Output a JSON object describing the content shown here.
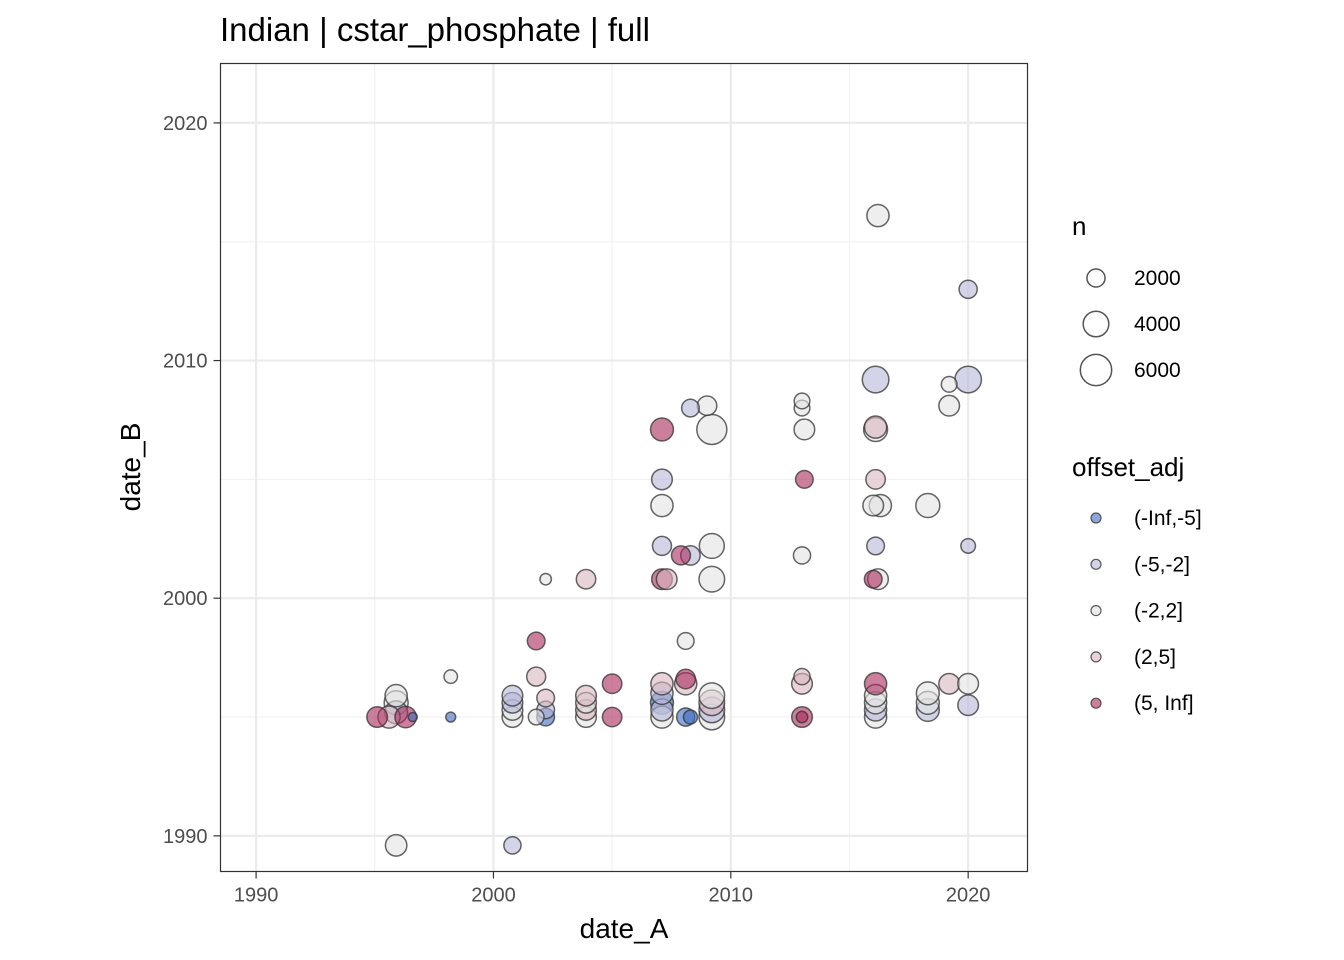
{
  "chart_data": {
    "type": "scatter",
    "title": "Indian | cstar_phosphate | full",
    "xlabel": "date_A",
    "ylabel": "date_B",
    "xlim": [
      1988.5,
      2022.5
    ],
    "ylim": [
      1988.5,
      2022.5
    ],
    "xticks": [
      1990,
      2000,
      2010,
      2020
    ],
    "yticks": [
      1990,
      2000,
      2010,
      2020
    ],
    "grid": true,
    "legend_position": "right",
    "size_legend": {
      "title": "n",
      "items": [
        {
          "label": "2000",
          "value": 2000
        },
        {
          "label": "4000",
          "value": 4000
        },
        {
          "label": "6000",
          "value": 6000
        }
      ]
    },
    "color_legend": {
      "title": "offset_adj",
      "items": [
        {
          "label": "(-Inf,-5]",
          "color": "#3d6bbf"
        },
        {
          "label": "(-5,-2]",
          "color": "#b7b8d8"
        },
        {
          "label": "(-2,2]",
          "color": "#e3e3e3"
        },
        {
          "label": "(2,5]",
          "color": "#d9b6bf"
        },
        {
          "label": "(5, Inf]",
          "color": "#a8295a"
        }
      ]
    },
    "points": [
      {
        "x": 1995.1,
        "y": 1995.0,
        "n": 2600,
        "cls": "(5, Inf]"
      },
      {
        "x": 1995.6,
        "y": 1995.0,
        "n": 3000,
        "cls": "(2,5]"
      },
      {
        "x": 1995.9,
        "y": 1995.2,
        "n": 3200,
        "cls": "(-5,-2]"
      },
      {
        "x": 1995.9,
        "y": 1995.6,
        "n": 3500,
        "cls": "(-2,2]"
      },
      {
        "x": 1995.9,
        "y": 1995.9,
        "n": 3000,
        "cls": "(-2,2]"
      },
      {
        "x": 1996.3,
        "y": 1995.0,
        "n": 2800,
        "cls": "(5, Inf]"
      },
      {
        "x": 1996.6,
        "y": 1995.0,
        "n": 500,
        "cls": "(-Inf,-5]"
      },
      {
        "x": 1995.9,
        "y": 1989.6,
        "n": 2800,
        "cls": "(-2,2]"
      },
      {
        "x": 1998.2,
        "y": 1995.0,
        "n": 600,
        "cls": "(-Inf,-5]"
      },
      {
        "x": 1998.2,
        "y": 1996.7,
        "n": 1100,
        "cls": "(-2,2]"
      },
      {
        "x": 2000.8,
        "y": 1995.0,
        "n": 2600,
        "cls": "(-2,2]"
      },
      {
        "x": 2000.8,
        "y": 1995.3,
        "n": 2600,
        "cls": "(-2,2]"
      },
      {
        "x": 2000.8,
        "y": 1995.6,
        "n": 2600,
        "cls": "(-5,-2]"
      },
      {
        "x": 2000.8,
        "y": 1995.9,
        "n": 2600,
        "cls": "(-5,-2]"
      },
      {
        "x": 2000.8,
        "y": 1989.6,
        "n": 1800,
        "cls": "(-5,-2]"
      },
      {
        "x": 2001.8,
        "y": 1995.0,
        "n": 1500,
        "cls": "(-2,2]"
      },
      {
        "x": 2001.8,
        "y": 1996.7,
        "n": 2200,
        "cls": "(2,5]"
      },
      {
        "x": 2001.8,
        "y": 1998.2,
        "n": 1900,
        "cls": "(5, Inf]"
      },
      {
        "x": 2002.2,
        "y": 1995.0,
        "n": 1900,
        "cls": "(-Inf,-5]"
      },
      {
        "x": 2002.2,
        "y": 1995.3,
        "n": 1900,
        "cls": "(-5,-2]"
      },
      {
        "x": 2002.2,
        "y": 1995.8,
        "n": 1900,
        "cls": "(2,5]"
      },
      {
        "x": 2002.2,
        "y": 2000.8,
        "n": 800,
        "cls": "(-2,2]"
      },
      {
        "x": 2003.9,
        "y": 1995.0,
        "n": 2600,
        "cls": "(-2,2]"
      },
      {
        "x": 2003.9,
        "y": 1995.3,
        "n": 2600,
        "cls": "(2,5]"
      },
      {
        "x": 2003.9,
        "y": 1995.6,
        "n": 2600,
        "cls": "(-2,2]"
      },
      {
        "x": 2003.9,
        "y": 1995.9,
        "n": 2600,
        "cls": "(2,5]"
      },
      {
        "x": 2003.9,
        "y": 2000.8,
        "n": 2300,
        "cls": "(2,5]"
      },
      {
        "x": 2005.0,
        "y": 1995.0,
        "n": 2300,
        "cls": "(5, Inf]"
      },
      {
        "x": 2005.0,
        "y": 1996.4,
        "n": 2300,
        "cls": "(5, Inf]"
      },
      {
        "x": 2007.1,
        "y": 1995.0,
        "n": 3000,
        "cls": "(-2,2]"
      },
      {
        "x": 2007.1,
        "y": 1995.3,
        "n": 3000,
        "cls": "(-5,-2]"
      },
      {
        "x": 2007.1,
        "y": 1995.6,
        "n": 3200,
        "cls": "(-Inf,-5]"
      },
      {
        "x": 2007.1,
        "y": 1996.0,
        "n": 3000,
        "cls": "(-5,-2]"
      },
      {
        "x": 2007.1,
        "y": 1996.4,
        "n": 3000,
        "cls": "(2,5]"
      },
      {
        "x": 2007.1,
        "y": 2000.8,
        "n": 2600,
        "cls": "(5, Inf]"
      },
      {
        "x": 2007.3,
        "y": 2000.8,
        "n": 2600,
        "cls": "(2,5]"
      },
      {
        "x": 2007.1,
        "y": 2002.2,
        "n": 2200,
        "cls": "(-5,-2]"
      },
      {
        "x": 2007.1,
        "y": 2003.9,
        "n": 3000,
        "cls": "(-2,2]"
      },
      {
        "x": 2007.1,
        "y": 2005.0,
        "n": 2600,
        "cls": "(-5,-2]"
      },
      {
        "x": 2007.1,
        "y": 2007.1,
        "n": 3200,
        "cls": "(5, Inf]"
      },
      {
        "x": 2008.1,
        "y": 1995.0,
        "n": 2000,
        "cls": "(-Inf,-5]"
      },
      {
        "x": 2008.3,
        "y": 1995.0,
        "n": 1200,
        "cls": "(-Inf,-5]"
      },
      {
        "x": 2008.1,
        "y": 1996.4,
        "n": 3000,
        "cls": "(2,5]"
      },
      {
        "x": 2008.1,
        "y": 1996.6,
        "n": 2300,
        "cls": "(5, Inf]"
      },
      {
        "x": 2008.1,
        "y": 1998.2,
        "n": 1700,
        "cls": "(-2,2]"
      },
      {
        "x": 2007.9,
        "y": 2001.8,
        "n": 2200,
        "cls": "(5, Inf]"
      },
      {
        "x": 2008.3,
        "y": 2001.8,
        "n": 2300,
        "cls": "(-5,-2]"
      },
      {
        "x": 2008.3,
        "y": 2008.0,
        "n": 1900,
        "cls": "(-5,-2]"
      },
      {
        "x": 2009.2,
        "y": 1995.0,
        "n": 4000,
        "cls": "(-2,2]"
      },
      {
        "x": 2009.2,
        "y": 1995.3,
        "n": 4000,
        "cls": "(-5,-2]"
      },
      {
        "x": 2009.2,
        "y": 1995.6,
        "n": 4000,
        "cls": "(2,5]"
      },
      {
        "x": 2009.2,
        "y": 1995.9,
        "n": 4000,
        "cls": "(-2,2]"
      },
      {
        "x": 2009.2,
        "y": 2000.8,
        "n": 4000,
        "cls": "(-2,2]"
      },
      {
        "x": 2009.2,
        "y": 2002.2,
        "n": 3800,
        "cls": "(-2,2]"
      },
      {
        "x": 2009.2,
        "y": 2007.1,
        "n": 5500,
        "cls": "(-2,2]"
      },
      {
        "x": 2009.0,
        "y": 2008.1,
        "n": 2300,
        "cls": "(-2,2]"
      },
      {
        "x": 2013.0,
        "y": 1995.0,
        "n": 2600,
        "cls": "(5, Inf]"
      },
      {
        "x": 2013.0,
        "y": 1995.0,
        "n": 800,
        "cls": "(5, Inf]"
      },
      {
        "x": 2013.0,
        "y": 1996.4,
        "n": 2600,
        "cls": "(2,5]"
      },
      {
        "x": 2013.0,
        "y": 1996.7,
        "n": 1600,
        "cls": "(2,5]"
      },
      {
        "x": 2013.0,
        "y": 2001.8,
        "n": 1800,
        "cls": "(-2,2]"
      },
      {
        "x": 2013.1,
        "y": 2005.0,
        "n": 1900,
        "cls": "(5, Inf]"
      },
      {
        "x": 2013.1,
        "y": 2007.1,
        "n": 2600,
        "cls": "(-2,2]"
      },
      {
        "x": 2013.0,
        "y": 2008.0,
        "n": 1500,
        "cls": "(-2,2]"
      },
      {
        "x": 2013.0,
        "y": 2008.3,
        "n": 1500,
        "cls": "(-2,2]"
      },
      {
        "x": 2016.1,
        "y": 1995.0,
        "n": 3000,
        "cls": "(-2,2]"
      },
      {
        "x": 2016.1,
        "y": 1995.3,
        "n": 3000,
        "cls": "(-5,-2]"
      },
      {
        "x": 2016.1,
        "y": 1995.6,
        "n": 3000,
        "cls": "(-2,2]"
      },
      {
        "x": 2016.1,
        "y": 1995.9,
        "n": 3000,
        "cls": "(-2,2]"
      },
      {
        "x": 2016.1,
        "y": 1996.4,
        "n": 3000,
        "cls": "(5, Inf]"
      },
      {
        "x": 2016.0,
        "y": 2000.8,
        "n": 1900,
        "cls": "(5, Inf]"
      },
      {
        "x": 2016.2,
        "y": 2000.8,
        "n": 2600,
        "cls": "(-2,2]"
      },
      {
        "x": 2016.1,
        "y": 2002.2,
        "n": 1900,
        "cls": "(-5,-2]"
      },
      {
        "x": 2016.0,
        "y": 2003.9,
        "n": 2600,
        "cls": "(-2,2]"
      },
      {
        "x": 2016.3,
        "y": 2003.9,
        "n": 3000,
        "cls": "(-2,2]"
      },
      {
        "x": 2016.1,
        "y": 2005.0,
        "n": 2300,
        "cls": "(2,5]"
      },
      {
        "x": 2016.1,
        "y": 2007.1,
        "n": 3500,
        "cls": "(-2,2]"
      },
      {
        "x": 2016.1,
        "y": 2007.2,
        "n": 3000,
        "cls": "(2,5]"
      },
      {
        "x": 2016.1,
        "y": 2009.2,
        "n": 4300,
        "cls": "(-5,-2]"
      },
      {
        "x": 2016.2,
        "y": 2016.1,
        "n": 3000,
        "cls": "(-2,2]"
      },
      {
        "x": 2018.3,
        "y": 1995.3,
        "n": 3200,
        "cls": "(-5,-2]"
      },
      {
        "x": 2018.3,
        "y": 1995.6,
        "n": 3200,
        "cls": "(-2,2]"
      },
      {
        "x": 2018.3,
        "y": 1996.0,
        "n": 3200,
        "cls": "(-2,2]"
      },
      {
        "x": 2018.3,
        "y": 2003.9,
        "n": 3500,
        "cls": "(-2,2]"
      },
      {
        "x": 2019.2,
        "y": 1996.4,
        "n": 2600,
        "cls": "(2,5]"
      },
      {
        "x": 2019.2,
        "y": 2008.1,
        "n": 2600,
        "cls": "(-2,2]"
      },
      {
        "x": 2019.2,
        "y": 2009.0,
        "n": 1500,
        "cls": "(-2,2]"
      },
      {
        "x": 2020.0,
        "y": 1995.5,
        "n": 2600,
        "cls": "(-5,-2]"
      },
      {
        "x": 2020.0,
        "y": 1996.4,
        "n": 2600,
        "cls": "(-2,2]"
      },
      {
        "x": 2020.0,
        "y": 2002.2,
        "n": 1300,
        "cls": "(-5,-2]"
      },
      {
        "x": 2020.0,
        "y": 2009.2,
        "n": 4300,
        "cls": "(-5,-2]"
      },
      {
        "x": 2020.0,
        "y": 2013.0,
        "n": 2000,
        "cls": "(-5,-2]"
      }
    ]
  }
}
